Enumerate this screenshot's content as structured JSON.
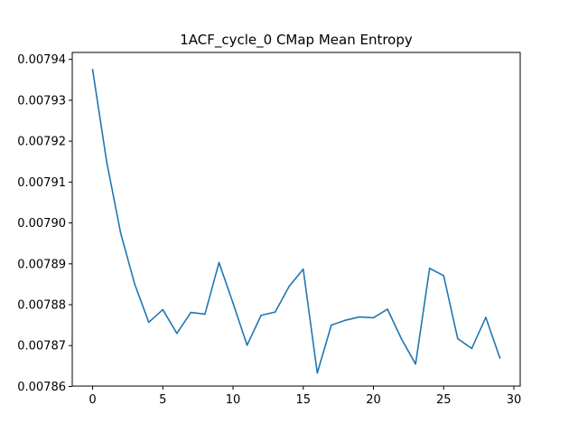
{
  "chart_data": {
    "type": "line",
    "title": "1ACF_cycle_0 CMap Mean Entropy",
    "xlabel": "",
    "ylabel": "",
    "xlim": [
      -1.45,
      30.45
    ],
    "ylim": [
      0.0078601,
      0.0079417
    ],
    "x_ticks": [
      0,
      5,
      10,
      15,
      20,
      25,
      30
    ],
    "x_tick_labels": [
      "0",
      "5",
      "10",
      "15",
      "20",
      "25",
      "30"
    ],
    "y_ticks": [
      0.00786,
      0.00787,
      0.00788,
      0.00789,
      0.0079,
      0.00791,
      0.00792,
      0.00793,
      0.00794
    ],
    "y_tick_labels": [
      "0.00786",
      "0.00787",
      "0.00788",
      "0.00789",
      "0.00790",
      "0.00791",
      "0.00792",
      "0.00793",
      "0.00794"
    ],
    "grid": false,
    "series": [
      {
        "color": "#1f77b4",
        "x": [
          0,
          1,
          2,
          3,
          4,
          5,
          6,
          7,
          8,
          9,
          10,
          11,
          12,
          13,
          14,
          15,
          16,
          17,
          18,
          19,
          20,
          21,
          22,
          23,
          24,
          25,
          26,
          27,
          28,
          29
        ],
        "y": [
          0.0079375,
          0.007915,
          0.0078975,
          0.007885,
          0.0078757,
          0.0078788,
          0.007873,
          0.0078781,
          0.0078777,
          0.0078903,
          0.0078804,
          0.0078701,
          0.0078774,
          0.0078782,
          0.0078845,
          0.0078887,
          0.0078633,
          0.007875,
          0.0078762,
          0.007877,
          0.0078768,
          0.0078789,
          0.0078716,
          0.0078655,
          0.0078889,
          0.0078871,
          0.0078717,
          0.0078693,
          0.0078769,
          0.007867
        ]
      }
    ]
  }
}
